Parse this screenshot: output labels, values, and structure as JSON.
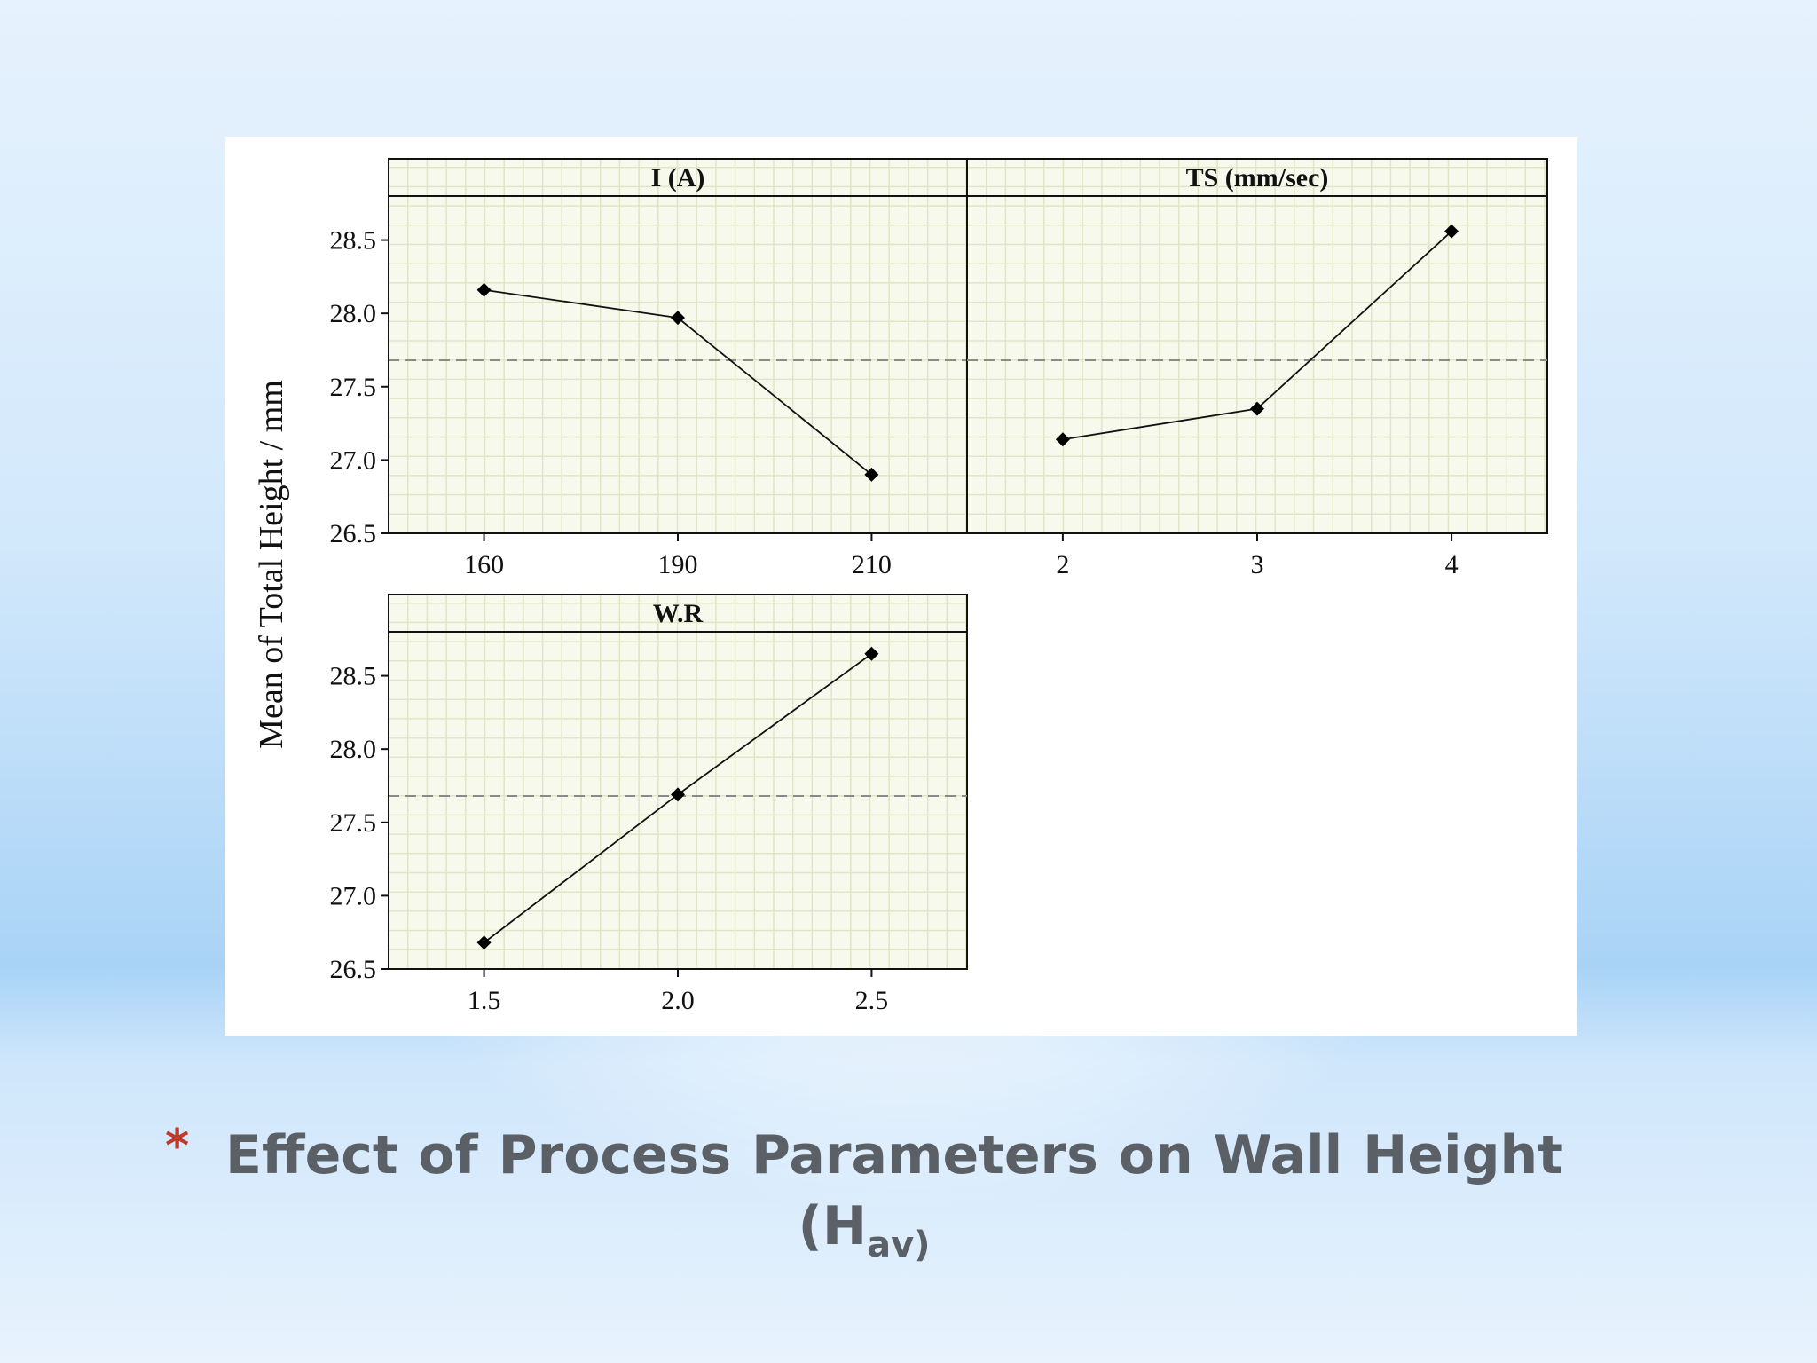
{
  "chart_data": {
    "type": "line",
    "ylabel": "Mean of Total Height / mm",
    "ylim": [
      26.5,
      28.8
    ],
    "yticks": [
      "26.5",
      "27.0",
      "27.5",
      "28.0",
      "28.5"
    ],
    "reference_line": 27.68,
    "grid": true,
    "marker": "diamond",
    "panels": [
      {
        "title": "I (A)",
        "categories": [
          "160",
          "190",
          "210"
        ],
        "values": [
          28.16,
          27.97,
          26.9
        ]
      },
      {
        "title": "TS (mm/sec)",
        "categories": [
          "2",
          "3",
          "4"
        ],
        "values": [
          27.14,
          27.35,
          28.56
        ]
      },
      {
        "title": "W.R",
        "categories": [
          "1.5",
          "2.0",
          "2.5"
        ],
        "values": [
          26.68,
          27.69,
          28.65
        ]
      }
    ]
  },
  "slide": {
    "bullet": "*",
    "title_words": [
      "Effect",
      "of",
      "Process",
      "Parameters",
      "on",
      "Wall",
      "Height"
    ],
    "title_line2_prefix": "(H",
    "title_line2_sub": "av)"
  },
  "colors": {
    "plot_bg": "#f7f9ec",
    "grid": "#dfe6c6",
    "bullet": "#c0392b",
    "title": "#5b5f66"
  }
}
